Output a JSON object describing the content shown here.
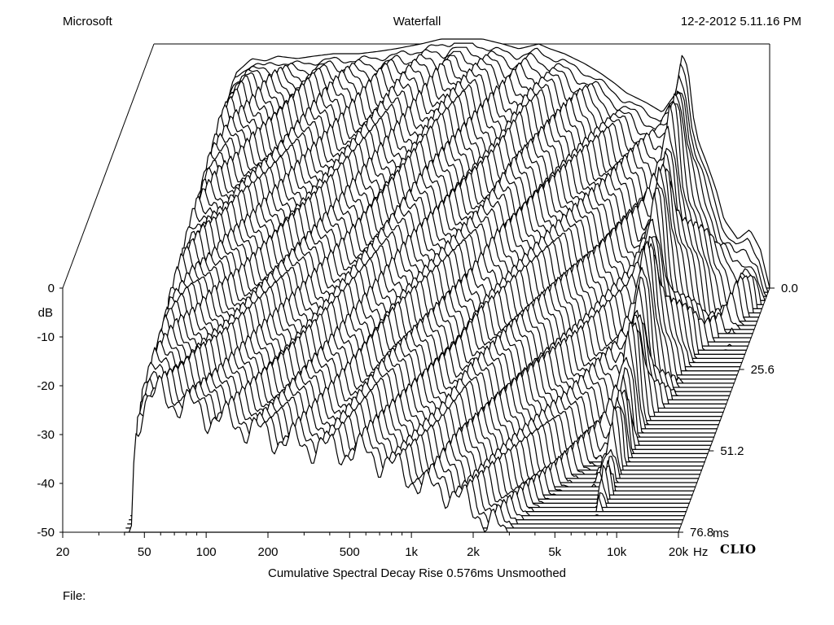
{
  "header": {
    "left": "Microsoft",
    "center": "Waterfall",
    "right": "12-2-2012 5.11.16 PM"
  },
  "footer": {
    "subtitle": "Cumulative Spectral Decay   Rise 0.576ms   Unsmoothed",
    "file_label": "File:",
    "brand": "CLIO"
  },
  "chart_data": {
    "type": "area",
    "title": "Waterfall",
    "subtitle": "Cumulative Spectral Decay   Rise 0.576ms   Unsmoothed",
    "xlabel": "Hz",
    "ylabel": "dB",
    "zlabel": "ms",
    "x_scale": "log",
    "xlim": [
      20,
      20000
    ],
    "ylim": [
      -50,
      0
    ],
    "zlim": [
      0,
      76.8
    ],
    "x_ticks": [
      {
        "value": 20,
        "label": "20"
      },
      {
        "value": 50,
        "label": "50"
      },
      {
        "value": 100,
        "label": "100"
      },
      {
        "value": 200,
        "label": "200"
      },
      {
        "value": 500,
        "label": "500"
      },
      {
        "value": 1000,
        "label": "1k"
      },
      {
        "value": 2000,
        "label": "2k"
      },
      {
        "value": 5000,
        "label": "5k"
      },
      {
        "value": 10000,
        "label": "10k"
      },
      {
        "value": 20000,
        "label": "20k"
      }
    ],
    "y_ticks": [
      {
        "value": 0,
        "label": "0"
      },
      {
        "value": -10,
        "label": "-10"
      },
      {
        "value": -20,
        "label": "-20"
      },
      {
        "value": -30,
        "label": "-30"
      },
      {
        "value": -40,
        "label": "-40"
      },
      {
        "value": -50,
        "label": "-50"
      }
    ],
    "z_ticks": [
      {
        "value": 0,
        "label": "0.0"
      },
      {
        "value": 25.6,
        "label": "25.6"
      },
      {
        "value": 51.2,
        "label": "51.2"
      },
      {
        "value": 76.8,
        "label": "76.8"
      }
    ],
    "slice_count": 60,
    "base_response": {
      "freq_hz": [
        42,
        45,
        50,
        60,
        70,
        80,
        100,
        120,
        150,
        200,
        250,
        300,
        400,
        500,
        600,
        700,
        800,
        1000,
        1200,
        1500,
        1700,
        2000,
        2500,
        3000,
        3500,
        4000,
        5000,
        6000,
        7000,
        7500,
        8000,
        8500,
        9000,
        10000,
        11000,
        12000,
        14000,
        16000,
        18000,
        20000
      ],
      "db": [
        -50,
        -14,
        -6,
        -3,
        -3.5,
        -2.5,
        -3,
        -2.5,
        -2,
        -2,
        -1.5,
        -1,
        0,
        1,
        2,
        1.5,
        1,
        0,
        -1,
        0,
        -1,
        -2,
        -4,
        -6,
        -8,
        -10,
        -12,
        -14,
        -10,
        -2,
        -5,
        -15,
        -20,
        -25,
        -30,
        -36,
        -40,
        -38,
        -42,
        -50
      ]
    }
  }
}
